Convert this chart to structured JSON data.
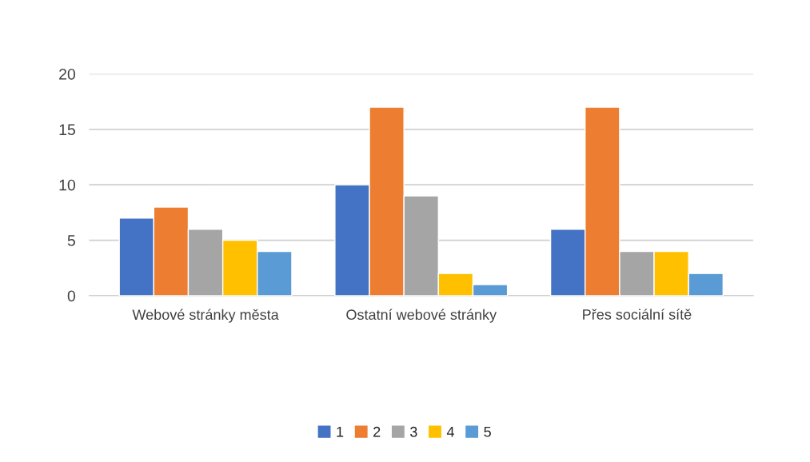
{
  "chart_data": {
    "type": "bar",
    "categories": [
      "Webové stránky města",
      "Ostatní webové stránky",
      "Přes sociální sítě"
    ],
    "series": [
      {
        "name": "1",
        "color": "#4472c4",
        "values": [
          7,
          10,
          6
        ]
      },
      {
        "name": "2",
        "color": "#ed7d31",
        "values": [
          8,
          17,
          17
        ]
      },
      {
        "name": "3",
        "color": "#a5a5a5",
        "values": [
          6,
          9,
          4
        ]
      },
      {
        "name": "4",
        "color": "#ffc000",
        "values": [
          5,
          2,
          4
        ]
      },
      {
        "name": "5",
        "color": "#5b9bd5",
        "values": [
          4,
          1,
          2
        ]
      }
    ],
    "ylim": [
      0,
      20
    ],
    "yticks": [
      0,
      5,
      10,
      15,
      20
    ],
    "grid": "y",
    "legend": "bottom"
  }
}
